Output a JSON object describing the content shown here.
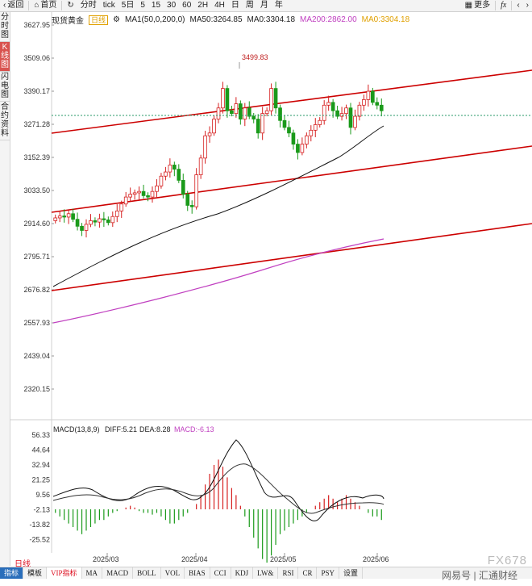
{
  "toolbar": {
    "back": "返回",
    "home": "首页",
    "refresh_icon": "refresh-icon",
    "periods": [
      "分时",
      "tick",
      "5日",
      "5",
      "15",
      "30",
      "60",
      "2H",
      "4H",
      "日",
      "周",
      "月",
      "年"
    ],
    "more": "更多",
    "fx_icon": "fx"
  },
  "sidebar": {
    "tabs": [
      {
        "label": "分时图",
        "active": false
      },
      {
        "label": "K线图",
        "active": true
      },
      {
        "label": "闪电图",
        "active": false
      },
      {
        "label": "合约资料",
        "active": false
      }
    ]
  },
  "header": {
    "symbol": "现货黄金",
    "period_tag": "日线",
    "ma1": "MA1(50,0,200,0)",
    "ma50": "MA50:3264.85",
    "ma0a": "MA0:3304.18",
    "ma200": "MA200:2862.00",
    "ma0b": "MA0:3304.18"
  },
  "price_axis": [
    "3627.95",
    "3509.06",
    "3390.17",
    "3271.28",
    "3152.39",
    "3033.50",
    "2914.60",
    "2795.71",
    "2676.82",
    "2557.93",
    "2439.04",
    "2320.15"
  ],
  "high_label": "3499.83",
  "macd_header": {
    "name": "MACD(13,8,9)",
    "diff": "DIFF:5.21",
    "dea": "DEA:8.28",
    "macd": "MACD:-6.13"
  },
  "macd_axis": [
    "56.33",
    "44.64",
    "32.94",
    "21.25",
    "9.56",
    "-2.13",
    "-13.82",
    "-25.52"
  ],
  "date_axis": [
    "2025/03",
    "2025/04",
    "2025/05",
    "2025/06"
  ],
  "bottom_tabs": [
    "指标",
    "模板",
    "VIP指标",
    "MA",
    "MACD",
    "BOLL",
    "VOL",
    "BIAS",
    "CCI",
    "KDJ",
    "LW&",
    "RSI",
    "CR",
    "PSY",
    "设置"
  ],
  "corner_label": "日线",
  "watermark": "FX678",
  "watermark_sub": "汇通财经",
  "watermark_left": "网易号",
  "colors": {
    "up": "#d62020",
    "down": "#1a9a1a",
    "ma50": "#111111",
    "ma200": "#c040c0",
    "channel": "#cc0000",
    "accent": "#2a6ebb"
  }
}
